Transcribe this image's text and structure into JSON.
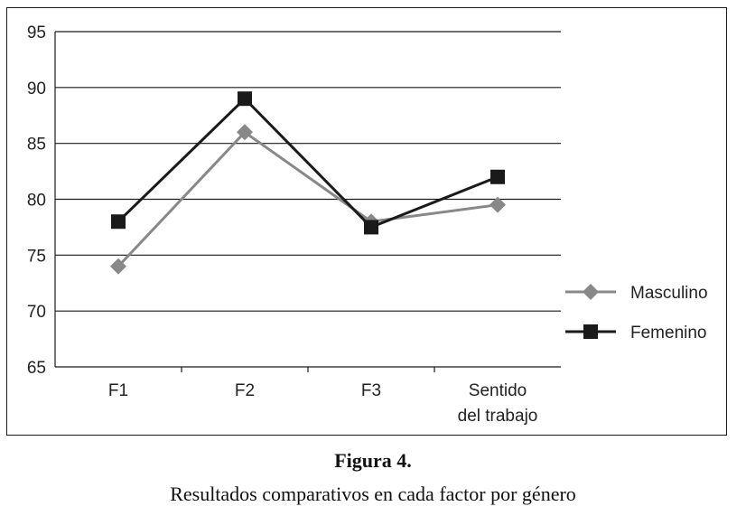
{
  "caption": {
    "title": "Figura 4.",
    "text": "Resultados comparativos en cada factor por género"
  },
  "chart_data": {
    "type": "line",
    "categories": [
      [
        "F1"
      ],
      [
        "F2"
      ],
      [
        "F3"
      ],
      [
        "Sentido",
        "del trabajo"
      ]
    ],
    "ylim": [
      65,
      95
    ],
    "yticks": [
      65,
      70,
      75,
      80,
      85,
      90,
      95
    ],
    "grid": true,
    "legend_position": "right",
    "series": [
      {
        "name": "Masculino",
        "values": [
          74,
          86,
          78,
          79.5
        ],
        "color": "#888888",
        "marker": "diamond"
      },
      {
        "name": "Femenino",
        "values": [
          78,
          89,
          77.5,
          82
        ],
        "color": "#1a1a1a",
        "marker": "square"
      }
    ]
  }
}
